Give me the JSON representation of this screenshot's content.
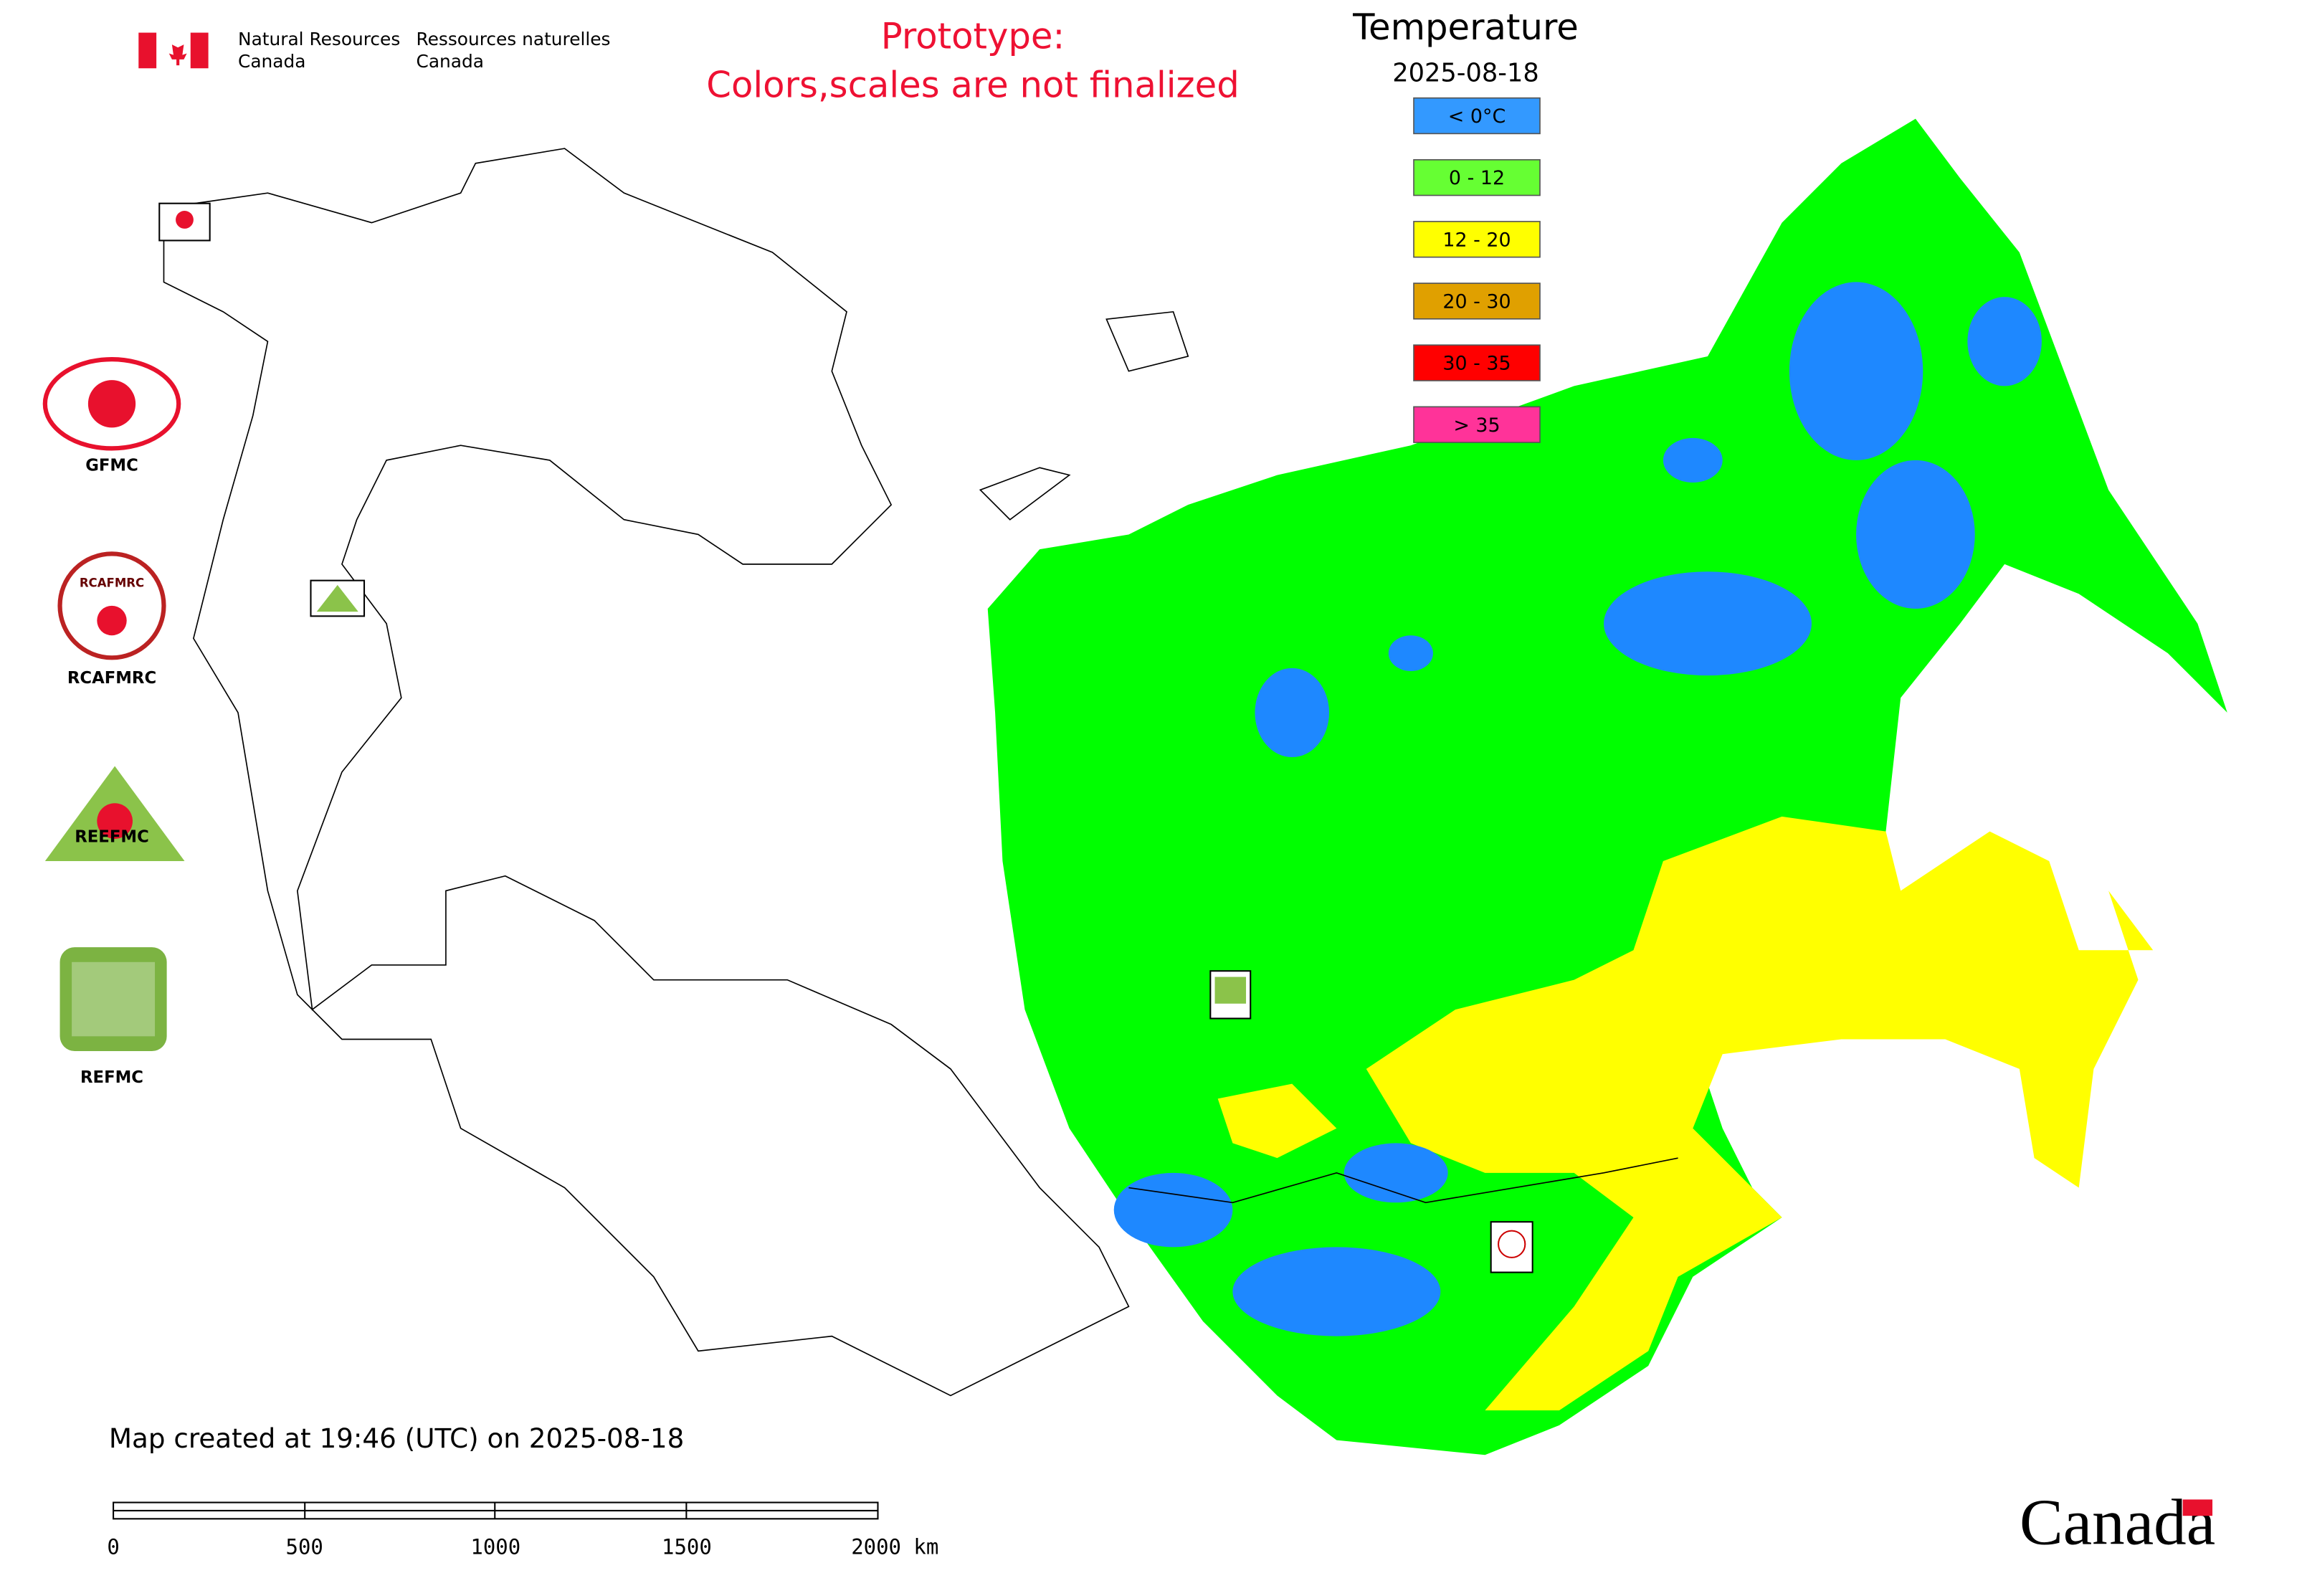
{
  "header": {
    "department_en": [
      "Natural Resources",
      "Canada"
    ],
    "department_fr": [
      "Ressources naturelles",
      "Canada"
    ],
    "notice": [
      "Prototype:",
      "Colors,scales are not finalized"
    ]
  },
  "legend": {
    "title": "Temperature",
    "date": "2025-08-18",
    "items": [
      {
        "label": "< 0°C",
        "color": "#3399ff"
      },
      {
        "label": "0 - 12",
        "color": "#66ff33"
      },
      {
        "label": "12 - 20",
        "color": "#ffff00"
      },
      {
        "label": "20 - 30",
        "color": "#e0a000"
      },
      {
        "label": "30 - 35",
        "color": "#ff0000"
      },
      {
        "label": "> 35",
        "color": "#ff3399"
      }
    ]
  },
  "logos": {
    "labels": [
      "GFMC",
      "RCAFMRC",
      "REFMC"
    ],
    "reefmc_text": "REEFMC",
    "rcafmrc_text": "RCAFMRC"
  },
  "footer": {
    "created": "Map created at 19:46 (UTC) on 2025-08-18",
    "scale_labels": [
      "0",
      "500",
      "1000",
      "1500",
      "2000 km"
    ],
    "wordmark": "Canada"
  }
}
